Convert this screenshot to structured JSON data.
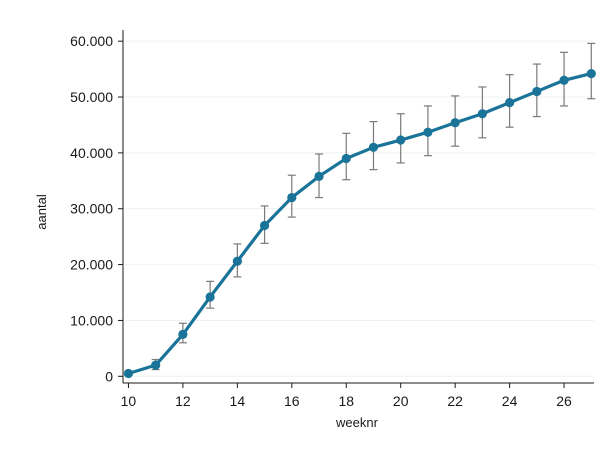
{
  "chart_data": {
    "type": "line",
    "title": "",
    "xlabel": "weeknr",
    "ylabel": "aantal",
    "xlim": [
      9.8,
      27.1
    ],
    "ylim": [
      -1200,
      62000
    ],
    "x_ticks": [
      10,
      12,
      14,
      16,
      18,
      20,
      22,
      24,
      26
    ],
    "x_tick_labels": [
      "10",
      "12",
      "14",
      "16",
      "18",
      "20",
      "22",
      "24",
      "26"
    ],
    "y_ticks": [
      0,
      10000,
      20000,
      30000,
      40000,
      50000,
      60000
    ],
    "y_tick_labels": [
      "0",
      "10.000",
      "20.000",
      "30.000",
      "40.000",
      "50.000",
      "60.000"
    ],
    "grid": true,
    "legend": "none",
    "colors": {
      "line": "#1a7398",
      "marker": "#1a7398",
      "errorbar": "#7a7a7a",
      "grid": "#eef2f4",
      "axis": "#1a1a1a"
    },
    "series": [
      {
        "x": [
          10,
          11,
          12,
          13,
          14,
          15,
          16,
          17,
          18,
          19,
          20,
          21,
          22,
          23,
          24,
          25,
          26,
          27
        ],
        "y": [
          500,
          2000,
          7500,
          14200,
          20600,
          27000,
          32000,
          35800,
          39000,
          41000,
          42300,
          43700,
          45400,
          47000,
          49000,
          51000,
          53000,
          54200
        ],
        "error_low": [
          200,
          1200,
          6000,
          12200,
          17800,
          23800,
          28500,
          32000,
          35200,
          37000,
          38200,
          39500,
          41200,
          42700,
          44600,
          46500,
          48400,
          49700
        ],
        "error_high": [
          900,
          3000,
          9500,
          17000,
          23700,
          30500,
          36000,
          39800,
          43500,
          45600,
          47000,
          48400,
          50200,
          51800,
          54000,
          55900,
          58000,
          59600
        ]
      }
    ]
  }
}
